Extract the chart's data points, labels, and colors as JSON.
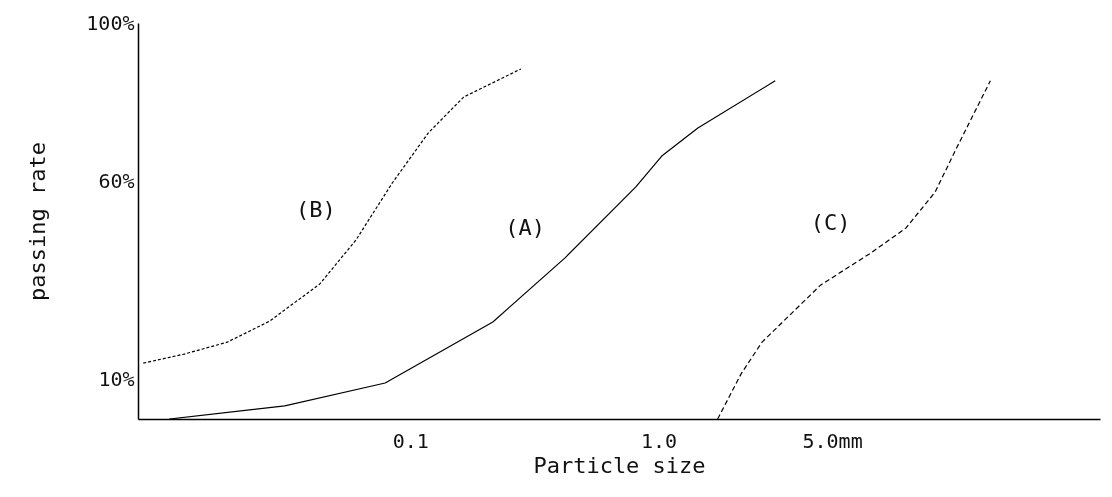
{
  "chart_data": {
    "type": "line",
    "xlabel": "Particle size",
    "ylabel": "passing rate",
    "log": "x",
    "xlim": [
      0.008,
      60
    ],
    "xticks": [
      {
        "value": 0.1,
        "label": "0.1"
      },
      {
        "value": 1,
        "label": "1.0"
      },
      {
        "value": 5,
        "label": "5.0mm"
      }
    ],
    "ylim": [
      0,
      100
    ],
    "yticks": [
      {
        "value": 10,
        "label": "10%"
      },
      {
        "value": 60,
        "label": "60%"
      },
      {
        "value": 100,
        "label": "100%"
      }
    ],
    "grid": false,
    "marker": "none",
    "series": [
      {
        "name": "(A)",
        "color": "#000000",
        "line_style": "solid",
        "x": [
          0.0107,
          0.0312,
          0.0792,
          0.215,
          0.42,
          0.81,
          1.03,
          1.44,
          2.95
        ],
        "values": [
          0,
          3.3,
          9.1,
          24.5,
          40.7,
          58.6,
          66.4,
          73.5,
          85.4
        ]
      },
      {
        "name": "(B)",
        "color": "#000000",
        "line_style": "dotted",
        "x": [
          0.0084,
          0.0123,
          0.0183,
          0.0271,
          0.0432,
          0.0604,
          0.0846,
          0.118,
          0.164,
          0.279
        ],
        "values": [
          14.1,
          16.4,
          19.4,
          24.7,
          34.1,
          45.2,
          59.6,
          72.2,
          81.3,
          88.4
        ]
      },
      {
        "name": "(C)",
        "color": "#000000",
        "line_style": "dashed",
        "x": [
          1.73,
          2.15,
          2.61,
          4.49,
          7.15,
          9.91,
          13.0,
          15.8,
          21.7
        ],
        "values": [
          0,
          11.4,
          19.4,
          33.8,
          41.9,
          48.2,
          57.3,
          68.2,
          85.4
        ]
      }
    ]
  }
}
